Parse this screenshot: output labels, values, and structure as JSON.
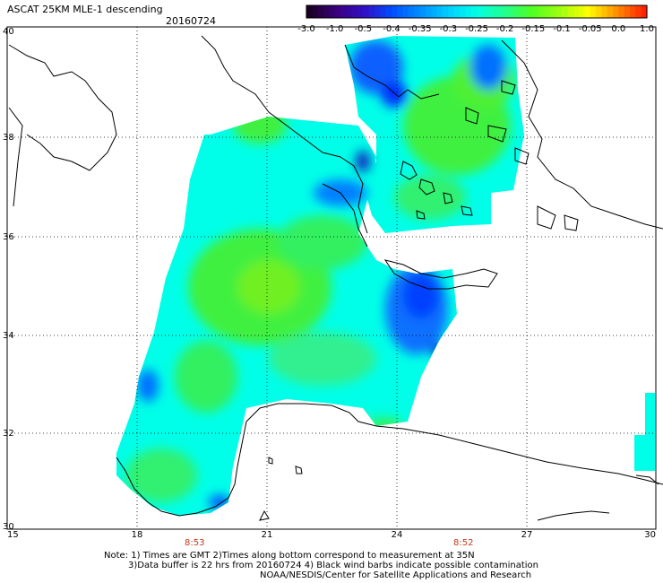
{
  "title": "ASCAT 25KM MLE-1 descending",
  "date": "20160724",
  "colorbar": {
    "labels": [
      "-3.0",
      "-1.0",
      "-0.5",
      "-0.4",
      "-0.35",
      "-0.3",
      "-0.25",
      "-0.2",
      "-0.15",
      "-0.1",
      "-0.05",
      "0.0",
      "1.0"
    ],
    "colors": [
      "#1a0022",
      "#3a0080",
      "#3010c8",
      "#0050ff",
      "#0090ff",
      "#00d0ff",
      "#00ffe8",
      "#20ff90",
      "#50ff20",
      "#a0ff10",
      "#ffff00",
      "#ff9000",
      "#ff2000"
    ]
  },
  "axes": {
    "lon_ticks": [
      "15",
      "18",
      "21",
      "24",
      "27",
      "30"
    ],
    "lat_ticks": [
      "40",
      "38",
      "36",
      "34",
      "32",
      "30"
    ]
  },
  "time_labels": [
    "8:53",
    "8:52"
  ],
  "notes": [
    "Note: 1) Times are GMT 2)Times along bottom correspond to measurement at 35N",
    "3)Data buffer is 22 hrs from 20160724 4) Black wind barbs indicate possible contamination",
    "NOAA/NESDIS/Center for Satellite Applications and Research"
  ]
}
